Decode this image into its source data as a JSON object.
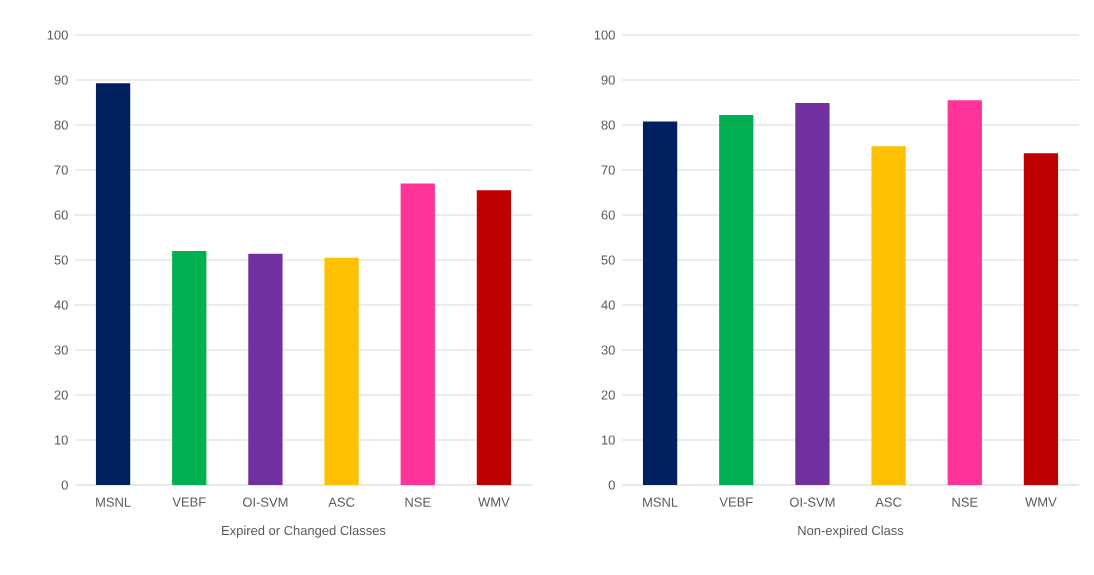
{
  "chart_data": [
    {
      "type": "bar",
      "xlabel": "Expired or Changed Classes",
      "categories": [
        "MSNL",
        "VEBF",
        "OI-SVM",
        "ASC",
        "NSE",
        "WMV"
      ],
      "values": [
        89.3,
        52,
        51.4,
        50.5,
        67,
        65.5
      ],
      "colors": [
        "#002060",
        "#00b050",
        "#7030a0",
        "#ffc000",
        "#ff3399",
        "#c00000"
      ],
      "ylim": [
        0,
        100
      ],
      "yticks": [
        0,
        10,
        20,
        30,
        40,
        50,
        60,
        70,
        80,
        90,
        100
      ],
      "grid": "y"
    },
    {
      "type": "bar",
      "xlabel": "Non-expired Class",
      "categories": [
        "MSNL",
        "VEBF",
        "OI-SVM",
        "ASC",
        "NSE",
        "WMV"
      ],
      "values": [
        80.8,
        82.2,
        84.9,
        75.3,
        85.5,
        73.7
      ],
      "colors": [
        "#002060",
        "#00b050",
        "#7030a0",
        "#ffc000",
        "#ff3399",
        "#c00000"
      ],
      "ylim": [
        0,
        100
      ],
      "yticks": [
        0,
        10,
        20,
        30,
        40,
        50,
        60,
        70,
        80,
        90,
        100
      ],
      "grid": "y"
    }
  ]
}
